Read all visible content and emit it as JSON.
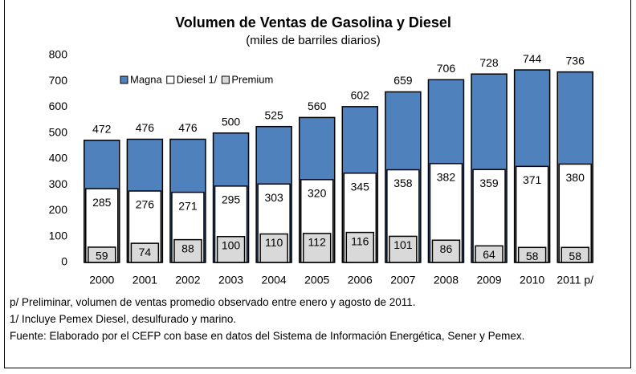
{
  "chart_data": {
    "type": "bar",
    "title": "Volumen de Ventas de Gasolina y Diesel",
    "subtitle": "(miles de barriles diarios)",
    "categories": [
      "2000",
      "2001",
      "2002",
      "2003",
      "2004",
      "2005",
      "2006",
      "2007",
      "2008",
      "2009",
      "2010",
      "2011 p/"
    ],
    "series": [
      {
        "name": "Magna",
        "color": "#4f81bd",
        "values": [
          472,
          476,
          476,
          500,
          525,
          560,
          602,
          659,
          706,
          728,
          744,
          736
        ]
      },
      {
        "name": "Diesel 1/",
        "color": "#ffffff",
        "values": [
          285,
          276,
          271,
          295,
          303,
          320,
          345,
          358,
          382,
          359,
          371,
          380
        ]
      },
      {
        "name": "Premium",
        "color": "#d9d9d9",
        "values": [
          59,
          74,
          88,
          100,
          110,
          112,
          116,
          101,
          86,
          64,
          58,
          58
        ]
      }
    ],
    "ylim": [
      0,
      800
    ],
    "yticks": [
      0,
      100,
      200,
      300,
      400,
      500,
      600,
      700,
      800
    ],
    "grid": false,
    "legend": "top-left",
    "notes": [
      "p/ Preliminar, volumen de ventas promedio observado entre enero y agosto de 2011.",
      "1/ Incluye Pemex Diesel, desulfurado y marino.",
      "Fuente: Elaborado por el CEFP con base en datos del Sistema de Información Energética, Sener y Pemex."
    ]
  }
}
